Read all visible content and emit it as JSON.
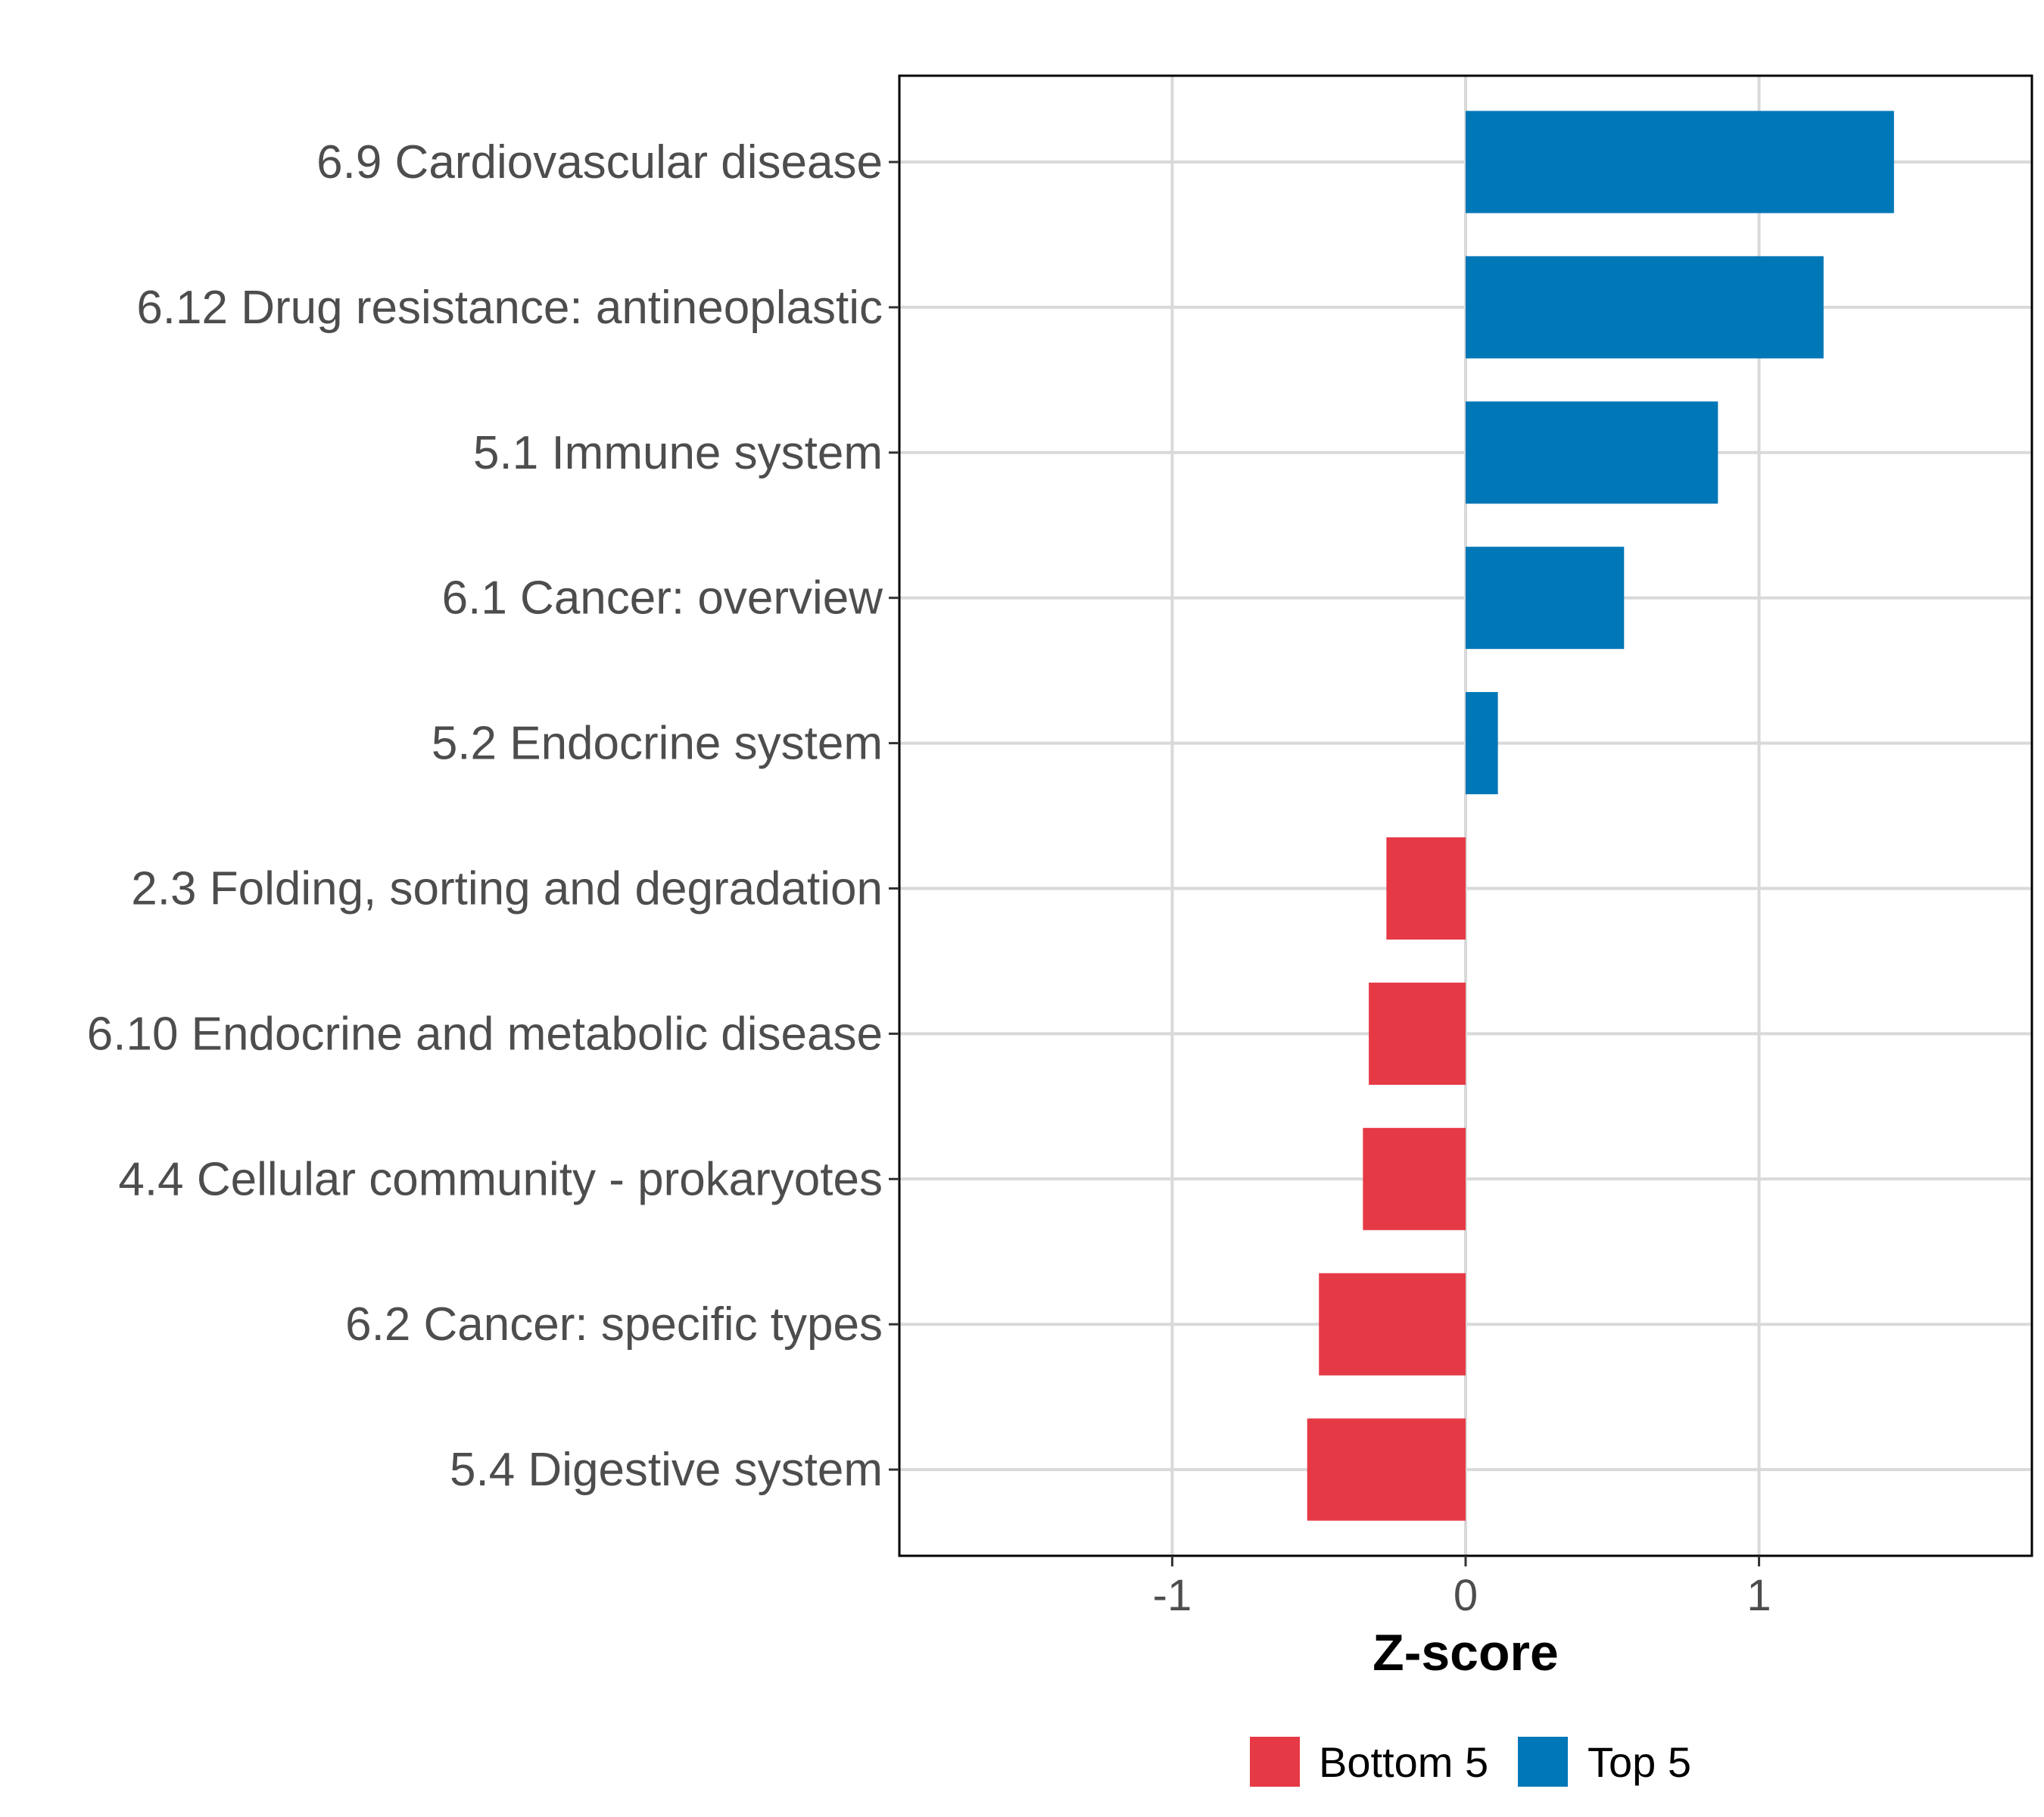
{
  "chart_data": {
    "type": "bar",
    "orientation": "horizontal",
    "categories": [
      "6.9 Cardiovascular disease",
      "6.12 Drug resistance: antineoplastic",
      "5.1 Immune system",
      "6.1 Cancer: overview",
      "5.2 Endocrine system",
      "2.3 Folding, sorting and degradation",
      "6.10 Endocrine and metabolic disease",
      "4.4 Cellular community - prokaryotes",
      "6.2 Cancer: specific types",
      "5.4 Digestive system"
    ],
    "values": [
      1.46,
      1.22,
      0.86,
      0.54,
      0.11,
      -0.27,
      -0.33,
      -0.35,
      -0.5,
      -0.54
    ],
    "groups": [
      "Top 5",
      "Top 5",
      "Top 5",
      "Top 5",
      "Top 5",
      "Bottom 5",
      "Bottom 5",
      "Bottom 5",
      "Bottom 5",
      "Bottom 5"
    ],
    "xlabel": "Z-score",
    "ylabel": "",
    "xlim": [
      -1.93,
      1.93
    ],
    "xticks": [
      -1,
      0,
      1
    ],
    "xtick_labels": [
      "-1",
      "0",
      "1"
    ],
    "grid": true,
    "legend": {
      "placement": "bottom",
      "entries": [
        {
          "label": "Bottom 5",
          "color": "#e63946"
        },
        {
          "label": "Top 5",
          "color": "#0077b6"
        }
      ]
    }
  }
}
